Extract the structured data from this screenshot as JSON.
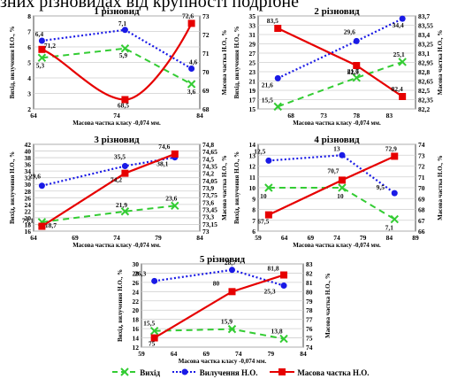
{
  "header_text": "зних різновидах від крупності подрібне",
  "legend": {
    "labels": [
      "Вихід",
      "Вилучення Н.О.",
      "Масова частка Н.О."
    ]
  },
  "colors": {
    "yield": "#33cc33",
    "recovery": "#1a1ae6",
    "grade": "#e60000"
  },
  "chart_data": [
    {
      "type": "line",
      "title": "1 різновид",
      "xlabel": "Масова частка класу -0,074 мм.",
      "ylabel_left": "Вихід, вилучення Н.О., %",
      "ylabel_right": "Масова частка Н.О., %",
      "xlim": [
        64,
        84
      ],
      "xticks": [
        "64",
        "74",
        "84"
      ],
      "ylim_left": [
        2,
        8
      ],
      "yticks_left": [
        "2",
        "3",
        "4",
        "5",
        "6",
        "7",
        "8"
      ],
      "ylim_right": [
        68,
        73
      ],
      "yticks_right": [
        "68",
        "69",
        "70",
        "71",
        "72",
        "73"
      ],
      "x": [
        65,
        75,
        83
      ],
      "series": [
        {
          "name": "Вихід",
          "axis": "left",
          "values": [
            5.3,
            5.9,
            3.6
          ],
          "labels": [
            "5,3",
            "5,9",
            "3,6"
          ]
        },
        {
          "name": "Вилучення Н.О.",
          "axis": "left",
          "values": [
            6.4,
            7.1,
            4.6
          ],
          "labels": [
            "6,4",
            "7,1",
            "4,6"
          ]
        },
        {
          "name": "Масова частка Н.О.",
          "axis": "right",
          "values": [
            71.2,
            68.5,
            72.6
          ],
          "labels": [
            "71,2",
            "68,5",
            "72,6"
          ],
          "curve": true
        }
      ]
    },
    {
      "type": "line",
      "title": "2 різновид",
      "xlabel": "Масова частка класу -0,074 мм.",
      "ylabel_left": "Вихід, вилучення Н.О., %",
      "ylabel_right": "Масова частка Н.О., %",
      "xlim": [
        63,
        87
      ],
      "xticks": [
        "68",
        "73",
        "78",
        "83"
      ],
      "ylim_left": [
        15,
        35
      ],
      "yticks_left": [
        "15",
        "17",
        "19",
        "21",
        "23",
        "25",
        "27",
        "29",
        "31",
        "33",
        "35"
      ],
      "ylim_right": [
        82.2,
        83.7
      ],
      "yticks_right": [
        "82,2",
        "82,35",
        "82,5",
        "82,65",
        "82,8",
        "82,95",
        "83,1",
        "83,25",
        "83,4",
        "83,55",
        "83,7"
      ],
      "x": [
        66,
        78,
        85
      ],
      "series": [
        {
          "name": "Вихід",
          "axis": "left",
          "values": [
            15.5,
            21.7,
            25.1
          ],
          "labels": [
            "15,5",
            "21,7",
            "25,1"
          ]
        },
        {
          "name": "Вилучення Н.О.",
          "axis": "left",
          "values": [
            21.6,
            29.6,
            34.4
          ],
          "labels": [
            "21,6",
            "29,6",
            "34,4"
          ]
        },
        {
          "name": "Масова частка Н.О.",
          "axis": "right",
          "values": [
            83.5,
            82.9,
            82.4
          ],
          "labels": [
            "83,5",
            "82,9",
            "82,4"
          ]
        }
      ]
    },
    {
      "type": "line",
      "title": "3 різновид",
      "xlabel": "Масова частка класу -0,074 мм.",
      "ylabel_left": "Вихід, вилучення Н.О., %",
      "ylabel_right": "Масова частка Н.О., %",
      "xlim": [
        64,
        84
      ],
      "xticks": [
        "64",
        "69",
        "74",
        "79",
        "84"
      ],
      "ylim_left": [
        16,
        42
      ],
      "yticks_left": [
        "16",
        "18",
        "20",
        "22",
        "24",
        "26",
        "28",
        "30",
        "32",
        "34",
        "36",
        "38",
        "40",
        "42"
      ],
      "ylim_right": [
        73,
        74.8
      ],
      "yticks_right": [
        "73",
        "73,15",
        "73,3",
        "73,45",
        "73,6",
        "73,75",
        "73,9",
        "74,05",
        "74,2",
        "74,35",
        "74,5",
        "74,65",
        "74,8"
      ],
      "x": [
        65,
        75,
        81
      ],
      "series": [
        {
          "name": "Вихід",
          "axis": "left",
          "values": [
            18.7,
            21.9,
            23.6
          ],
          "labels": [
            "18,7",
            "21,9",
            "23,6"
          ]
        },
        {
          "name": "Вилучення Н.О.",
          "axis": "left",
          "values": [
            29.6,
            35.5,
            38.1
          ],
          "labels": [
            "29,6",
            "35,5",
            "38,1"
          ]
        },
        {
          "name": "Масова частка Н.О.",
          "axis": "right",
          "values": [
            73.1,
            74.2,
            74.6
          ],
          "labels": [
            "73,1",
            "74,2",
            "74,6"
          ]
        }
      ]
    },
    {
      "type": "line",
      "title": "4 різновид",
      "xlabel": "Масова частка класу -0,074 мм.",
      "ylabel_left": "Вихід, вилучення Н.О., %",
      "ylabel_right": "Масова частка Н.О., %",
      "xlim": [
        59,
        89
      ],
      "xticks": [
        "59",
        "64",
        "69",
        "74",
        "79",
        "84",
        "89"
      ],
      "ylim_left": [
        6,
        14
      ],
      "yticks_left": [
        "6",
        "7",
        "8",
        "9",
        "10",
        "11",
        "12",
        "13",
        "14"
      ],
      "ylim_right": [
        66,
        74
      ],
      "yticks_right": [
        "66",
        "67",
        "68",
        "69",
        "70",
        "71",
        "72",
        "73",
        "74"
      ],
      "x": [
        61,
        75,
        85
      ],
      "series": [
        {
          "name": "Вихід",
          "axis": "left",
          "values": [
            10,
            10,
            7.1
          ],
          "labels": [
            "10",
            "10",
            "7,1"
          ]
        },
        {
          "name": "Вилучення Н.О.",
          "axis": "left",
          "values": [
            12.5,
            13,
            9.5
          ],
          "labels": [
            "12,5",
            "13",
            "9,5"
          ]
        },
        {
          "name": "Масова частка Н.О.",
          "axis": "right",
          "values": [
            67.5,
            70.7,
            72.9
          ],
          "labels": [
            "67,5",
            "70,7",
            "72,9"
          ]
        }
      ]
    },
    {
      "type": "line",
      "title": "5 різновид",
      "xlabel": "Масова частка класу -0,074 мм.",
      "ylabel_left": "Вихід, вилучення Н.О., %",
      "ylabel_right": "Масова частка Н.О., %",
      "xlim": [
        59,
        84
      ],
      "xticks": [
        "59",
        "64",
        "69",
        "74",
        "79",
        "84"
      ],
      "ylim_left": [
        12,
        30
      ],
      "yticks_left": [
        "12",
        "14",
        "16",
        "18",
        "20",
        "22",
        "24",
        "26",
        "28",
        "30"
      ],
      "ylim_right": [
        74,
        83
      ],
      "yticks_right": [
        "74",
        "75",
        "76",
        "77",
        "78",
        "79",
        "80",
        "81",
        "82",
        "83"
      ],
      "x": [
        61,
        73,
        81
      ],
      "series": [
        {
          "name": "Вихід",
          "axis": "left",
          "values": [
            15.5,
            15.9,
            13.8
          ],
          "labels": [
            "15,5",
            "15,9",
            "13,8"
          ]
        },
        {
          "name": "Вилучення Н.О.",
          "axis": "left",
          "values": [
            26.3,
            28.7,
            25.3
          ],
          "labels": [
            "26,3",
            "28,7",
            "25,3"
          ]
        },
        {
          "name": "Масова частка Н.О.",
          "axis": "right",
          "values": [
            75,
            80,
            81.8
          ],
          "labels": [
            "75",
            "80",
            "81,8"
          ]
        }
      ]
    }
  ]
}
